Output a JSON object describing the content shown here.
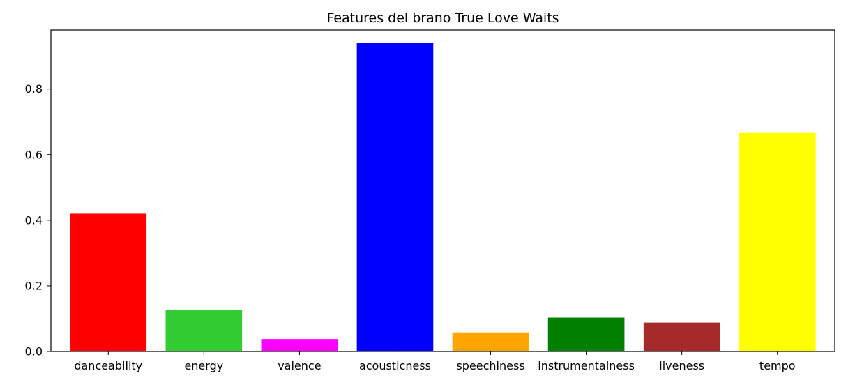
{
  "chart_data": {
    "type": "bar",
    "title": "Features del brano True Love Waits",
    "xlabel": "",
    "ylabel": "",
    "categories": [
      "danceability",
      "energy",
      "valence",
      "acousticness",
      "speechiness",
      "instrumentalness",
      "liveness",
      "tempo"
    ],
    "values": [
      0.42,
      0.127,
      0.038,
      0.941,
      0.058,
      0.103,
      0.088,
      0.666
    ],
    "colors": [
      "#ff0000",
      "#32cd32",
      "#ff00ff",
      "#0000ff",
      "#ffa500",
      "#008000",
      "#a52a2a",
      "#ffff00"
    ],
    "ylim": [
      0,
      0.98
    ],
    "yticks": [
      0.0,
      0.2,
      0.4,
      0.6,
      0.8
    ],
    "ytick_labels": [
      "0.0",
      "0.2",
      "0.4",
      "0.6",
      "0.8"
    ],
    "grid": false,
    "legend": "none"
  }
}
